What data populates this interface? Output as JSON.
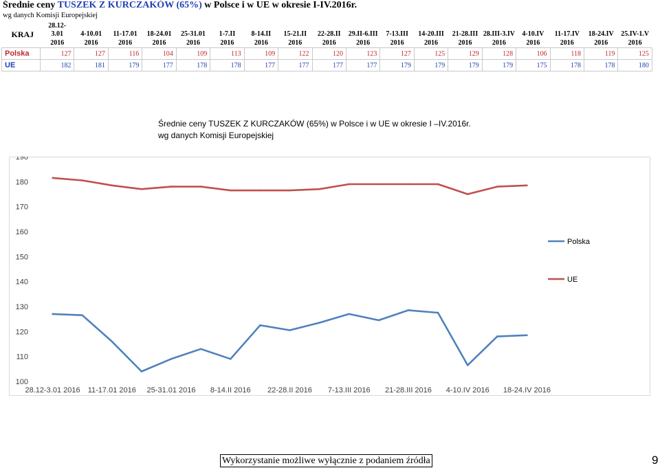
{
  "header": {
    "title_prefix": "Średnie ceny ",
    "title_product": "TUSZEK Z KURCZAKÓW (65%)",
    "title_suffix": " w Polsce i w UE w okresie I-IV.2016r.",
    "subtitle": "wg danych Komisji Europejskiej"
  },
  "table": {
    "kraj_label": "KRAJ",
    "columns": [
      [
        "28.12-",
        "3.01",
        "2016"
      ],
      [
        "4-10.01",
        "2016"
      ],
      [
        "11-17.01",
        "2016"
      ],
      [
        "18-24.01",
        "2016"
      ],
      [
        "25-31.01",
        "2016"
      ],
      [
        "1-7.II",
        "2016"
      ],
      [
        "8-14.II",
        "2016"
      ],
      [
        "15-21.II",
        "2016"
      ],
      [
        "22-28.II",
        "2016"
      ],
      [
        "29.II-6.III",
        "2016"
      ],
      [
        "7-13.III",
        "2016"
      ],
      [
        "14-20.III",
        "2016"
      ],
      [
        "21-28.III",
        "2016"
      ],
      [
        "28.III-3.IV",
        "2016"
      ],
      [
        "4-10.IV",
        "2016"
      ],
      [
        "11-17.IV",
        "2016"
      ],
      [
        "18-24.IV",
        "2016"
      ],
      [
        "25.IV-1.V",
        "2016"
      ]
    ],
    "rows": [
      {
        "name": "Polska",
        "values": [
          127,
          127,
          116,
          104,
          109,
          113,
          109,
          122,
          120,
          123,
          127,
          125,
          129,
          128,
          106,
          118,
          119,
          125
        ]
      },
      {
        "name": "UE",
        "values": [
          182,
          181,
          179,
          177,
          178,
          178,
          177,
          177,
          177,
          177,
          179,
          179,
          179,
          179,
          175,
          178,
          178,
          180
        ]
      }
    ]
  },
  "chart_data": {
    "type": "line",
    "title_line1": "Średnie ceny TUSZEK Z KURCZAKÓW (65%) w Polsce i w UE w okresie I –IV.2016r.",
    "title_line2": "wg danych Komisji Europejskiej",
    "categories": [
      "28.12-3.01 2016",
      "4-10.01 2016",
      "11-17.01 2016",
      "18-24.01 2016",
      "25-31.01 2016",
      "1-7.II 2016",
      "8-14.II 2016",
      "15-21.II 2016",
      "22-28.II 2016",
      "29.II-6.III 2016",
      "7-13.III 2016",
      "14-20.III 2016",
      "21-28.III 2016",
      "28.III-3.IV 2016",
      "4-10.IV 2016",
      "11-17.IV 2016",
      "18-24.IV 2016"
    ],
    "x_tick_labels": [
      "28.12-3.01 2016",
      "11-17.01 2016",
      "25-31.01 2016",
      "8-14.II 2016",
      "22-28.II 2016",
      "7-13.III 2016",
      "21-28.III 2016",
      "4-10.IV 2016",
      "18-24.IV 2016"
    ],
    "x_tick_indices": [
      0,
      2,
      4,
      6,
      8,
      10,
      12,
      14,
      16
    ],
    "series": [
      {
        "name": "Polska",
        "color": "#4f81bd",
        "values": [
          127,
          126.5,
          116,
          104,
          109,
          113,
          109,
          122.5,
          120.5,
          123.5,
          127,
          124.5,
          128.5,
          127.5,
          106.5,
          118,
          118.5
        ]
      },
      {
        "name": "UE",
        "color": "#c0504d",
        "values": [
          181.5,
          180.5,
          178.5,
          177,
          178,
          178,
          176.5,
          176.5,
          176.5,
          177,
          179,
          179,
          179,
          179,
          175,
          178,
          178.5
        ]
      }
    ],
    "ylim": [
      100,
      190
    ],
    "yticks": [
      100,
      110,
      120,
      130,
      140,
      150,
      160,
      170,
      180,
      190
    ],
    "grid": false,
    "legend_position": "right"
  },
  "footer": {
    "note": "Wykorzystanie możliwe wyłącznie z podaniem źródła",
    "page_number": "9"
  }
}
